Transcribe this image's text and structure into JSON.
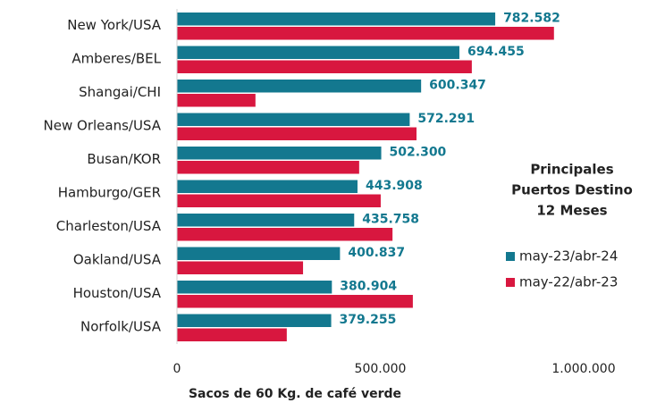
{
  "chart_data": {
    "type": "barh",
    "categories": [
      "New York/USA",
      "Amberes/BEL",
      "Shangai/CHI",
      "New Orleans/USA",
      "Busan/KOR",
      "Hamburgo/GER",
      "Charleston/USA",
      "Oakland/USA",
      "Houston/USA",
      "Norfolk/USA"
    ],
    "series": [
      {
        "name": "may-23/abr-24",
        "color": "#13788f",
        "values": [
          782582,
          694455,
          600347,
          572291,
          502300,
          443908,
          435758,
          400837,
          380904,
          379255
        ],
        "value_labels": [
          "782.582",
          "694.455",
          "600.347",
          "572.291",
          "502.300",
          "443.908",
          "435.758",
          "400.837",
          "380.904",
          "379.255"
        ]
      },
      {
        "name": "may-22/abr-23",
        "color": "#d8173f",
        "values": [
          927000,
          725000,
          193000,
          589000,
          448000,
          501000,
          530000,
          310000,
          580000,
          270000
        ]
      }
    ],
    "xlim": [
      0,
      1000000
    ],
    "xticks": [
      0,
      {
        "value": 500000,
        "label": "500.000"
      },
      {
        "value": 1000000,
        "label": "1.000.000"
      }
    ],
    "xlabel": "Sacos de 60 Kg. de café verde",
    "legend_title": [
      "Principales",
      "Puertos Destino",
      "12 Meses"
    ],
    "legend": "right"
  }
}
